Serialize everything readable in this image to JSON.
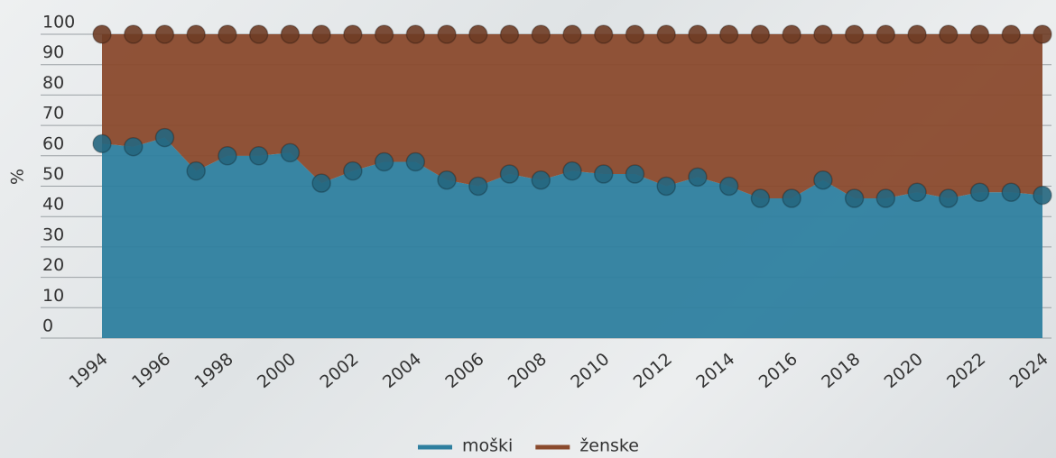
{
  "chart_data": {
    "type": "stacked-area",
    "y_label": "%",
    "x": [
      1994,
      1995,
      1996,
      1997,
      1998,
      1999,
      2000,
      2001,
      2002,
      2003,
      2004,
      2005,
      2006,
      2007,
      2008,
      2009,
      2010,
      2011,
      2012,
      2013,
      2014,
      2015,
      2016,
      2017,
      2018,
      2019,
      2020,
      2021,
      2022,
      2023,
      2024
    ],
    "xlim": [
      1994,
      2024
    ],
    "xticks": [
      1994,
      1996,
      1998,
      2000,
      2002,
      2004,
      2006,
      2008,
      2010,
      2012,
      2014,
      2016,
      2018,
      2020,
      2022,
      2024
    ],
    "ylim": [
      0,
      100
    ],
    "yticks": [
      0,
      10,
      20,
      30,
      40,
      50,
      60,
      70,
      80,
      90,
      100
    ],
    "grid": true,
    "legend": "bottom",
    "series": [
      {
        "name": "moški",
        "color": "#2e7f9f",
        "values": [
          64,
          63,
          66,
          55,
          60,
          60,
          61,
          51,
          55,
          58,
          58,
          52,
          50,
          54,
          52,
          55,
          54,
          54,
          50,
          53,
          50,
          46,
          46,
          52,
          46,
          46,
          48,
          46,
          48,
          48,
          47
        ]
      },
      {
        "name": "ženske",
        "color": "#8a4a2d",
        "values": [
          36,
          37,
          34,
          45,
          40,
          40,
          39,
          49,
          45,
          42,
          42,
          48,
          50,
          46,
          48,
          45,
          46,
          46,
          50,
          47,
          50,
          54,
          54,
          48,
          54,
          54,
          52,
          54,
          52,
          52,
          53
        ]
      }
    ]
  }
}
